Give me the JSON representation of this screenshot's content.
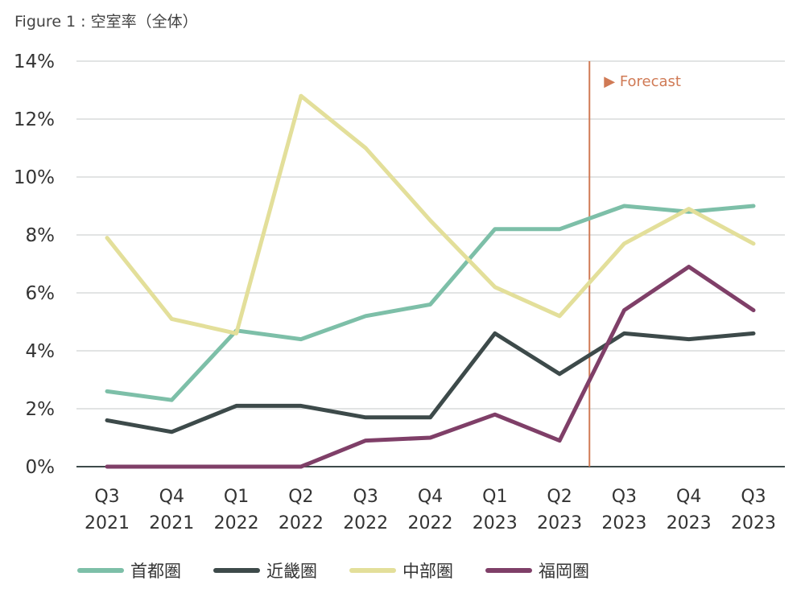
{
  "figure_title": "Figure 1 : 空室率（全体）",
  "forecast_label": "▶ Forecast",
  "chart_data": {
    "type": "line",
    "categories": [
      [
        "Q3",
        "2021"
      ],
      [
        "Q4",
        "2021"
      ],
      [
        "Q1",
        "2022"
      ],
      [
        "Q2",
        "2022"
      ],
      [
        "Q3",
        "2022"
      ],
      [
        "Q4",
        "2022"
      ],
      [
        "Q1",
        "2023"
      ],
      [
        "Q2",
        "2023"
      ],
      [
        "Q3",
        "2023"
      ],
      [
        "Q4",
        "2023"
      ],
      [
        "Q3",
        "2023"
      ]
    ],
    "y_ticks": [
      "0%",
      "2%",
      "4%",
      "6%",
      "8%",
      "10%",
      "12%",
      "14%"
    ],
    "ylim": [
      0,
      14
    ],
    "grid": true,
    "forecast_after_index": 7,
    "legend_position": "bottom",
    "series": [
      {
        "name": "首都圏",
        "color": "#7dbfa8",
        "values": [
          2.6,
          2.3,
          4.7,
          4.4,
          5.2,
          5.6,
          8.2,
          8.2,
          9.0,
          8.8,
          9.0
        ]
      },
      {
        "name": "近畿圏",
        "color": "#3d4a4a",
        "values": [
          1.6,
          1.2,
          2.1,
          2.1,
          1.7,
          1.7,
          4.6,
          3.2,
          4.6,
          4.4,
          4.6
        ]
      },
      {
        "name": "中部圏",
        "color": "#e3df9a",
        "values": [
          7.9,
          5.1,
          4.6,
          12.8,
          11.0,
          8.5,
          6.2,
          5.2,
          7.7,
          8.9,
          7.7
        ]
      },
      {
        "name": "福岡圏",
        "color": "#7f3f68",
        "values": [
          0.0,
          0.0,
          0.0,
          0.0,
          0.9,
          1.0,
          1.8,
          0.9,
          5.4,
          6.9,
          5.4
        ]
      }
    ],
    "forecast_line_color": "#d07a55"
  }
}
